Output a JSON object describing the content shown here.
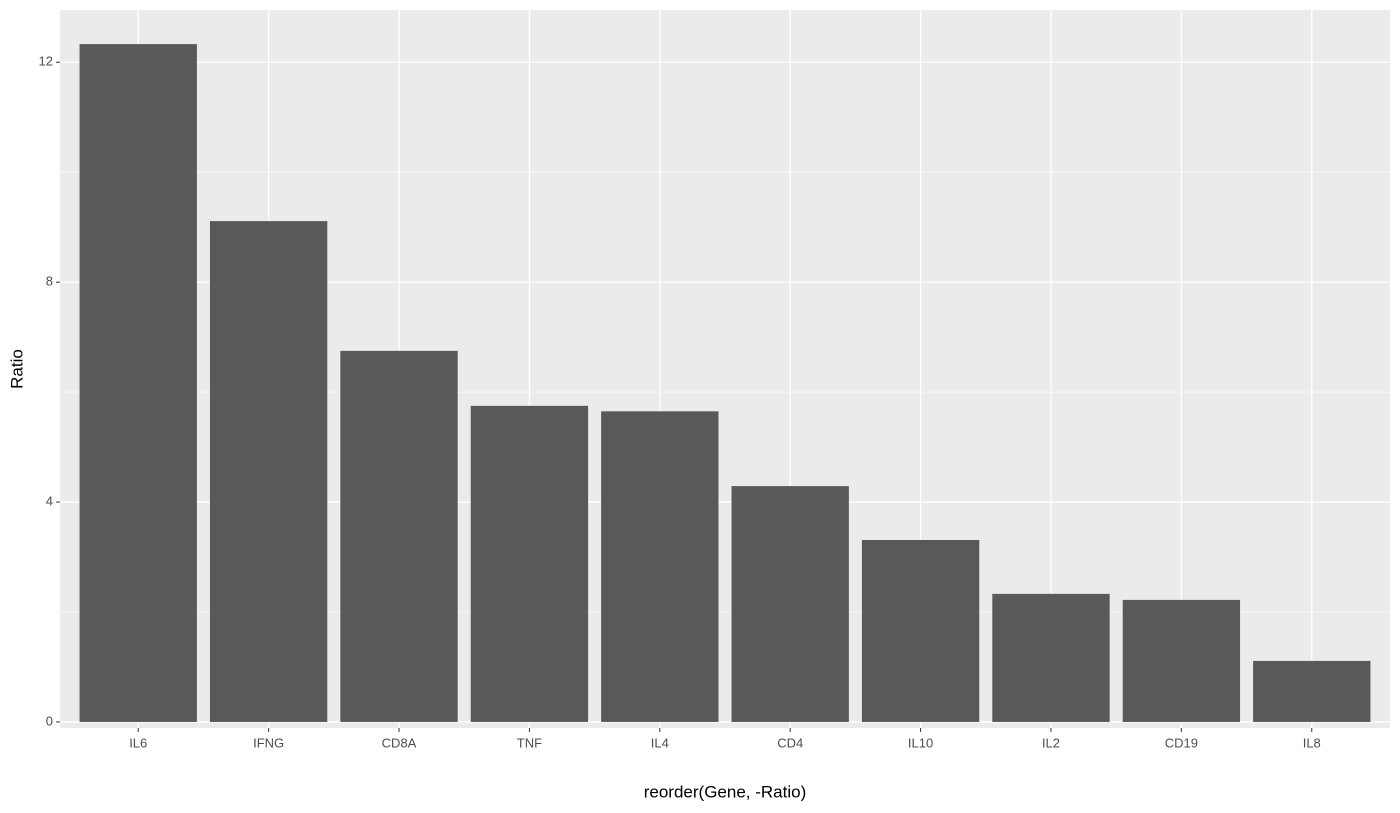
{
  "chart_data": {
    "type": "bar",
    "x_label": "reorder(Gene, -Ratio)",
    "y_label": "Ratio",
    "categories": [
      "IL6",
      "IFNG",
      "CD8A",
      "TNF",
      "IL4",
      "CD4",
      "IL10",
      "IL2",
      "CD19",
      "IL8"
    ],
    "values": [
      12.33,
      9.11,
      6.75,
      5.75,
      5.65,
      4.29,
      3.31,
      2.33,
      2.22,
      1.11
    ],
    "color": "#595959",
    "ylim": [
      -0.11,
      12.95
    ],
    "yticks": [
      0,
      4,
      8,
      12
    ],
    "y_minor_ticks": [
      2,
      6,
      10
    ],
    "grid": true
  }
}
